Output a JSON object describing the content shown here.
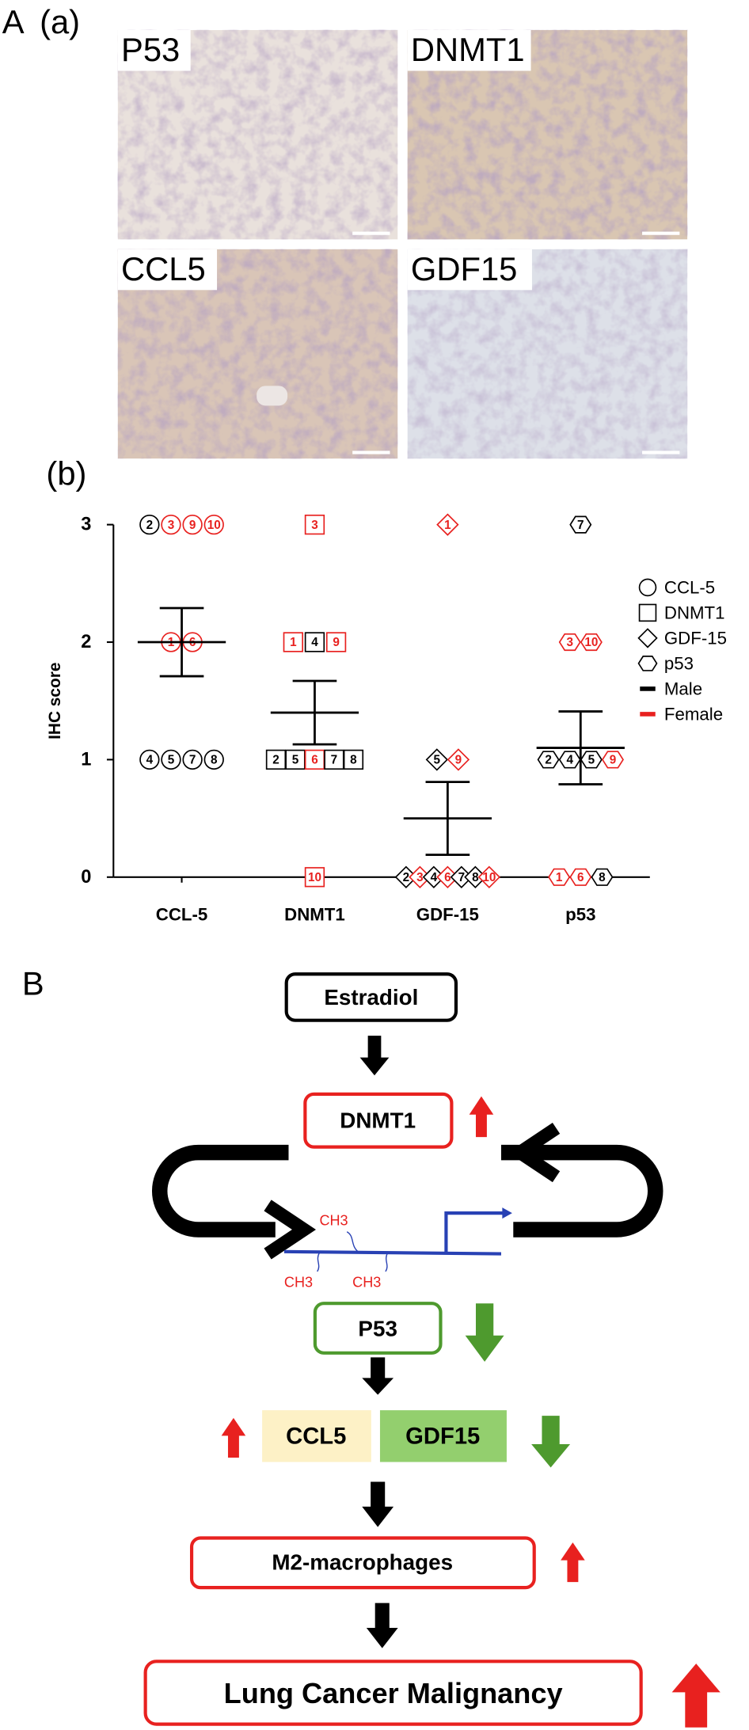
{
  "panel_labels": {
    "A": "A",
    "a": "(a)",
    "b": "(b)",
    "B": "B"
  },
  "micrographs": [
    {
      "label": "P53"
    },
    {
      "label": "DNMT1"
    },
    {
      "label": "CCL5"
    },
    {
      "label": "GDF15"
    }
  ],
  "chart_data": {
    "type": "strip",
    "ylabel": "IHC score",
    "categories": [
      "CCL-5",
      "DNMT1",
      "GDF-15",
      "p53"
    ],
    "ylim": [
      0,
      3
    ],
    "yticks": [
      0,
      1,
      2,
      3
    ],
    "legend_position": "right",
    "series": [
      {
        "name": "CCL-5",
        "shape": "circle",
        "labels": [
          "2",
          "3",
          "9",
          "10",
          "1",
          "6",
          "4",
          "5",
          "7",
          "8"
        ],
        "values": [
          3,
          3,
          3,
          3,
          2,
          2,
          1,
          1,
          1,
          1
        ],
        "colors": [
          "#000000",
          "#e8211f",
          "#e8211f",
          "#e8211f",
          "#e8211f",
          "#e8211f",
          "#000000",
          "#000000",
          "#000000",
          "#000000"
        ]
      },
      {
        "name": "DNMT1",
        "shape": "square",
        "labels": [
          "3",
          "1",
          "4",
          "9",
          "2",
          "5",
          "6",
          "7",
          "8",
          "10"
        ],
        "values": [
          3,
          2,
          2,
          2,
          1,
          1,
          1,
          1,
          1,
          0
        ],
        "colors": [
          "#e8211f",
          "#e8211f",
          "#000000",
          "#e8211f",
          "#000000",
          "#000000",
          "#e8211f",
          "#000000",
          "#000000",
          "#e8211f"
        ]
      },
      {
        "name": "GDF-15",
        "shape": "diamond",
        "labels": [
          "1",
          "5",
          "9",
          "2",
          "3",
          "4",
          "6",
          "7",
          "8",
          "10"
        ],
        "values": [
          3,
          1,
          1,
          0,
          0,
          0,
          0,
          0,
          0,
          0
        ],
        "colors": [
          "#e8211f",
          "#000000",
          "#e8211f",
          "#000000",
          "#e8211f",
          "#000000",
          "#e8211f",
          "#000000",
          "#000000",
          "#e8211f"
        ]
      },
      {
        "name": "p53",
        "shape": "hexagon",
        "labels": [
          "7",
          "3",
          "10",
          "2",
          "4",
          "5",
          "9",
          "1",
          "6",
          "8"
        ],
        "values": [
          3,
          2,
          2,
          1,
          1,
          1,
          1,
          0,
          0,
          0
        ],
        "colors": [
          "#000000",
          "#e8211f",
          "#e8211f",
          "#000000",
          "#000000",
          "#000000",
          "#e8211f",
          "#e8211f",
          "#e8211f",
          "#000000"
        ]
      }
    ],
    "means": [
      2,
      1.4,
      0.5,
      1.1
    ],
    "errors": [
      0.29,
      0.27,
      0.31,
      0.31
    ],
    "sexes": [
      {
        "name": "Male",
        "color": "#000000"
      },
      {
        "name": "Female",
        "color": "#e8211f"
      }
    ]
  },
  "diagram": {
    "nodes": [
      {
        "label": "Estradiol"
      },
      {
        "label": "DNMT1"
      },
      {
        "label": "P53"
      },
      {
        "label": "CCL5"
      },
      {
        "label": "GDF15"
      },
      {
        "label": "M2-macrophages"
      },
      {
        "label": "Lung Cancer Malignancy"
      }
    ],
    "methyl_labels": [
      "CH3",
      "CH3",
      "CH3"
    ]
  }
}
